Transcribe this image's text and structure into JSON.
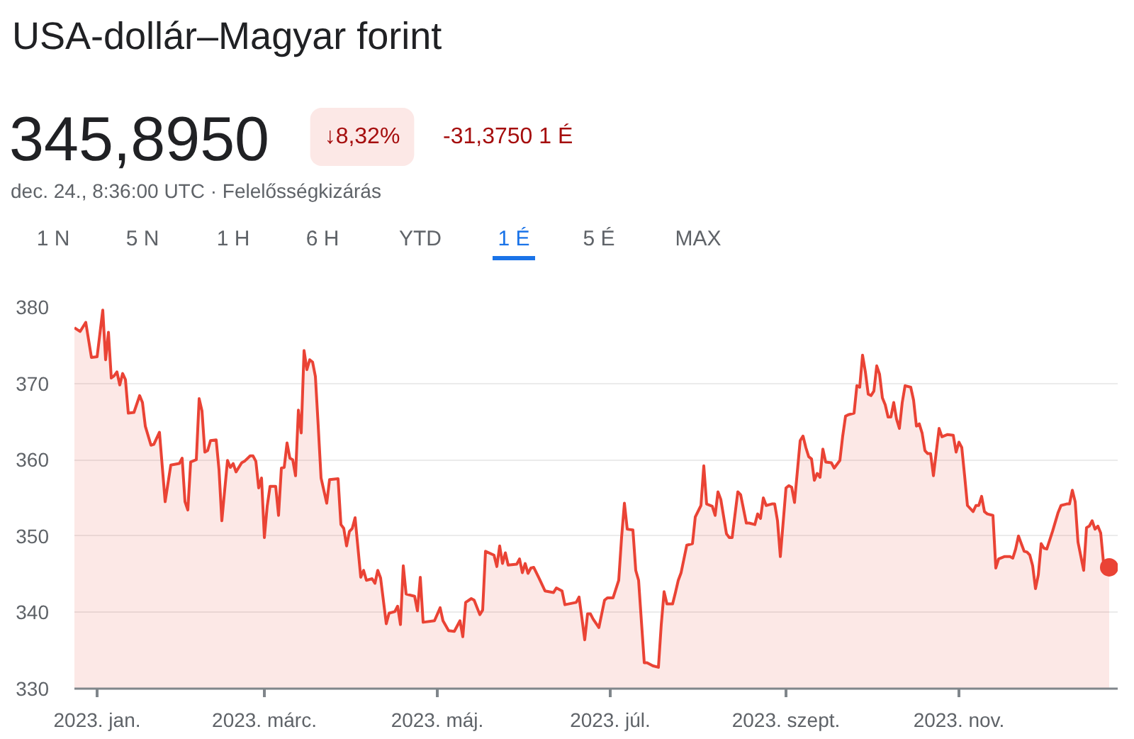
{
  "chart_data": {
    "type": "area",
    "title": "USA-dollár–Magyar forint",
    "subtitle": "345,8950",
    "annotations": [
      "↓8,32%",
      "-31,3750 1 É",
      "dec. 24., 8:36:00 UTC · Felelősségkizárás",
      "1 N",
      "5 N",
      "1 H",
      "6 H",
      "YTD",
      "1 É",
      "5 É",
      "MAX"
    ],
    "xlim": [
      "2022-12-24",
      "2023-12-27"
    ],
    "xticks": [
      {
        "value": "2023-01-01",
        "label": "2023. jan."
      },
      {
        "value": "2023-03-01",
        "label": "2023. márc."
      },
      {
        "value": "2023-05-01",
        "label": "2023. máj."
      },
      {
        "value": "2023-07-01",
        "label": "2023. júl."
      },
      {
        "value": "2023-09-01",
        "label": "2023. szept."
      },
      {
        "value": "2023-11-01",
        "label": "2023. nov."
      }
    ],
    "ylim": [
      330,
      380
    ],
    "yticks": [
      330,
      340,
      350,
      360,
      370,
      380
    ],
    "grid": "y",
    "series": [
      {
        "color": "#ea4335",
        "x": [
          "2022-12-24",
          "2022-12-26",
          "2022-12-28",
          "2022-12-30",
          "2023-01-01",
          "2023-01-03",
          "2023-01-04",
          "2023-01-05",
          "2023-01-06",
          "2023-01-07",
          "2023-01-08",
          "2023-01-09",
          "2023-01-10",
          "2023-01-11",
          "2023-01-12",
          "2023-01-14",
          "2023-01-16",
          "2023-01-17",
          "2023-01-18",
          "2023-01-20",
          "2023-01-21",
          "2023-01-23",
          "2023-01-25",
          "2023-01-27",
          "2023-01-30",
          "2023-01-31",
          "2023-02-01",
          "2023-02-02",
          "2023-02-03",
          "2023-02-05",
          "2023-02-06",
          "2023-02-07",
          "2023-02-08",
          "2023-02-09",
          "2023-02-10",
          "2023-02-12",
          "2023-02-13",
          "2023-02-14",
          "2023-02-15",
          "2023-02-16",
          "2023-02-17",
          "2023-02-18",
          "2023-02-19",
          "2023-02-21",
          "2023-02-22",
          "2023-02-24",
          "2023-02-25",
          "2023-02-26",
          "2023-02-27",
          "2023-02-28",
          "2023-03-01",
          "2023-03-02",
          "2023-03-03",
          "2023-03-05",
          "2023-03-06",
          "2023-03-07",
          "2023-03-08",
          "2023-03-09",
          "2023-03-10",
          "2023-03-11",
          "2023-03-12",
          "2023-03-13",
          "2023-03-14",
          "2023-03-15",
          "2023-03-16",
          "2023-03-17",
          "2023-03-18",
          "2023-03-19",
          "2023-03-20",
          "2023-03-21",
          "2023-03-23",
          "2023-03-24",
          "2023-03-27",
          "2023-03-28",
          "2023-03-29",
          "2023-03-30",
          "2023-03-31",
          "2023-04-01",
          "2023-04-02",
          "2023-04-04",
          "2023-04-05",
          "2023-04-06",
          "2023-04-08",
          "2023-04-09",
          "2023-04-10",
          "2023-04-11",
          "2023-04-13",
          "2023-04-14",
          "2023-04-16",
          "2023-04-17",
          "2023-04-18",
          "2023-04-19",
          "2023-04-20",
          "2023-04-23",
          "2023-04-24",
          "2023-04-25",
          "2023-04-26",
          "2023-04-30",
          "2023-05-02",
          "2023-05-03",
          "2023-05-05",
          "2023-05-07",
          "2023-05-09",
          "2023-05-10",
          "2023-05-11",
          "2023-05-13",
          "2023-05-14",
          "2023-05-16",
          "2023-05-17",
          "2023-05-18",
          "2023-05-21",
          "2023-05-22",
          "2023-05-23",
          "2023-05-24",
          "2023-05-25",
          "2023-05-26",
          "2023-05-29",
          "2023-05-30",
          "2023-05-31",
          "2023-06-01",
          "2023-06-02",
          "2023-06-03",
          "2023-06-04",
          "2023-06-06",
          "2023-06-08",
          "2023-06-11",
          "2023-06-12",
          "2023-06-14",
          "2023-06-15",
          "2023-06-19",
          "2023-06-20",
          "2023-06-21",
          "2023-06-22",
          "2023-06-23",
          "2023-06-24",
          "2023-06-25",
          "2023-06-27",
          "2023-06-29",
          "2023-06-30",
          "2023-07-02",
          "2023-07-04",
          "2023-07-05",
          "2023-07-06",
          "2023-07-07",
          "2023-07-09",
          "2023-07-10",
          "2023-07-11",
          "2023-07-13",
          "2023-07-14",
          "2023-07-16",
          "2023-07-18",
          "2023-07-19",
          "2023-07-20",
          "2023-07-21",
          "2023-07-23",
          "2023-07-24",
          "2023-07-25",
          "2023-07-26",
          "2023-07-28",
          "2023-07-30",
          "2023-07-31",
          "2023-08-02",
          "2023-08-03",
          "2023-08-04",
          "2023-08-06",
          "2023-08-07",
          "2023-08-08",
          "2023-08-09",
          "2023-08-11",
          "2023-08-12",
          "2023-08-13",
          "2023-08-15",
          "2023-08-16",
          "2023-08-18",
          "2023-08-19",
          "2023-08-21",
          "2023-08-22",
          "2023-08-23",
          "2023-08-24",
          "2023-08-25",
          "2023-08-27",
          "2023-08-28",
          "2023-08-29",
          "2023-08-30",
          "2023-09-01",
          "2023-09-02",
          "2023-09-03",
          "2023-09-04",
          "2023-09-06",
          "2023-09-07",
          "2023-09-08",
          "2023-09-09",
          "2023-09-10",
          "2023-09-11",
          "2023-09-12",
          "2023-09-13",
          "2023-09-14",
          "2023-09-15",
          "2023-09-17",
          "2023-09-18",
          "2023-09-20",
          "2023-09-21",
          "2023-09-22",
          "2023-09-23",
          "2023-09-25",
          "2023-09-26",
          "2023-09-27",
          "2023-09-28",
          "2023-09-29",
          "2023-09-30",
          "2023-10-01",
          "2023-10-02",
          "2023-10-03",
          "2023-10-04",
          "2023-10-05",
          "2023-10-06",
          "2023-10-07",
          "2023-10-08",
          "2023-10-09",
          "2023-10-10",
          "2023-10-11",
          "2023-10-12",
          "2023-10-13",
          "2023-10-15",
          "2023-10-16",
          "2023-10-17",
          "2023-10-18",
          "2023-10-19",
          "2023-10-20",
          "2023-10-21",
          "2023-10-22",
          "2023-10-23",
          "2023-10-25",
          "2023-10-26",
          "2023-10-28",
          "2023-10-30",
          "2023-10-31",
          "2023-11-01",
          "2023-11-02",
          "2023-11-03",
          "2023-11-04",
          "2023-11-06",
          "2023-11-07",
          "2023-11-08",
          "2023-11-09",
          "2023-11-10",
          "2023-11-11",
          "2023-11-13",
          "2023-11-14",
          "2023-11-15",
          "2023-11-17",
          "2023-11-19",
          "2023-11-20",
          "2023-11-21",
          "2023-11-22",
          "2023-11-24",
          "2023-11-25",
          "2023-11-26",
          "2023-11-27",
          "2023-11-28",
          "2023-11-29",
          "2023-11-30",
          "2023-12-01",
          "2023-12-02",
          "2023-12-04",
          "2023-12-06",
          "2023-12-07",
          "2023-12-09",
          "2023-12-10",
          "2023-12-11",
          "2023-12-12",
          "2023-12-13",
          "2023-12-15",
          "2023-12-16",
          "2023-12-17",
          "2023-12-18",
          "2023-12-19",
          "2023-12-20",
          "2023-12-21",
          "2023-12-22",
          "2023-12-23",
          "2023-12-24"
        ],
        "values": [
          377.3,
          376.8,
          378.0,
          373.4,
          373.5,
          379.6,
          373.1,
          376.7,
          370.7,
          371.0,
          371.5,
          369.8,
          371.3,
          370.5,
          366.1,
          366.2,
          368.4,
          367.5,
          364.4,
          361.9,
          362.0,
          363.6,
          354.5,
          359.3,
          359.5,
          360.2,
          354.5,
          353.4,
          359.7,
          360.0,
          368.0,
          366.4,
          361.0,
          361.2,
          362.5,
          362.6,
          358.7,
          352.0,
          356.0,
          359.9,
          359.0,
          359.5,
          358.4,
          359.6,
          359.8,
          360.5,
          360.5,
          359.8,
          356.3,
          357.6,
          349.8,
          353.9,
          356.5,
          356.5,
          352.7,
          358.9,
          359.0,
          362.2,
          360.2,
          360.0,
          357.9,
          366.5,
          363.5,
          374.3,
          371.8,
          373.1,
          372.8,
          370.9,
          364.4,
          357.6,
          354.3,
          357.4,
          357.5,
          351.5,
          351.0,
          348.7,
          350.6,
          351.0,
          352.4,
          344.6,
          345.5,
          344.2,
          344.4,
          343.8,
          345.5,
          344.5,
          338.5,
          339.9,
          340.1,
          340.8,
          338.4,
          346.1,
          342.4,
          342.1,
          340.2,
          344.6,
          338.7,
          338.9,
          340.6,
          338.9,
          337.6,
          337.5,
          338.9,
          336.8,
          341.3,
          341.8,
          341.6,
          339.7,
          340.3,
          348.0,
          347.5,
          346.0,
          348.7,
          346.4,
          347.8,
          346.2,
          346.3,
          347.0,
          345.2,
          346.4,
          345.1,
          345.8,
          345.9,
          344.4,
          342.8,
          342.6,
          343.2,
          342.8,
          341.0,
          341.3,
          342.0,
          339.3,
          336.4,
          339.8,
          339.8,
          339.1,
          338.0,
          341.6,
          341.9,
          341.9,
          344.2,
          349.8,
          354.3,
          350.9,
          350.8,
          345.5,
          344.2,
          333.4,
          333.4,
          333.0,
          332.8,
          338.4,
          342.7,
          341.1,
          341.1,
          342.6,
          344.2,
          345.2,
          348.8,
          349.0,
          352.5,
          354.0,
          359.2,
          354.2,
          353.9,
          352.7,
          355.8,
          354.8,
          350.3,
          349.8,
          349.8,
          355.8,
          355.4,
          351.7,
          351.7,
          351.5,
          352.9,
          352.3,
          355.0,
          354.0,
          354.2,
          354.2,
          352.0,
          347.3,
          356.3,
          356.6,
          356.4,
          354.4,
          362.5,
          363.1,
          361.6,
          360.4,
          360.1,
          357.3,
          358.2,
          357.7,
          361.4,
          359.7,
          359.6,
          358.9,
          359.9,
          363.1,
          365.7,
          365.9,
          366.1,
          369.7,
          369.5,
          373.7,
          371.5,
          368.6,
          368.4,
          369.0,
          372.3,
          371.2,
          368.1,
          367.2,
          365.6,
          365.6,
          367.5,
          365.3,
          364.1,
          367.5,
          369.7,
          369.5,
          367.8,
          364.4,
          364.7,
          363.5,
          361.2,
          360.8,
          360.8,
          357.9,
          364.1,
          363.0,
          363.3,
          363.2,
          361.0,
          362.3,
          361.6,
          357.9,
          354.0,
          353.2,
          354.0,
          354.0,
          355.2,
          353.2,
          352.9,
          352.7,
          345.8,
          347.0,
          347.3,
          347.3,
          347.1,
          348.3,
          350.0,
          348.0,
          347.9,
          347.5,
          346.1,
          343.1,
          344.9,
          349.0,
          348.4,
          348.3,
          350.6,
          353.1,
          354.0,
          354.2,
          354.2,
          356.0,
          354.5,
          349.2,
          345.5,
          351.1,
          351.3,
          352.0,
          350.9,
          351.3,
          350.4,
          346.5,
          345.9,
          345.9
        ]
      },
      {
        "type": "scatter",
        "color": "#ea4335",
        "marker": "circle",
        "x": [
          "2023-12-24"
        ],
        "values": [
          345.9
        ]
      }
    ]
  }
}
